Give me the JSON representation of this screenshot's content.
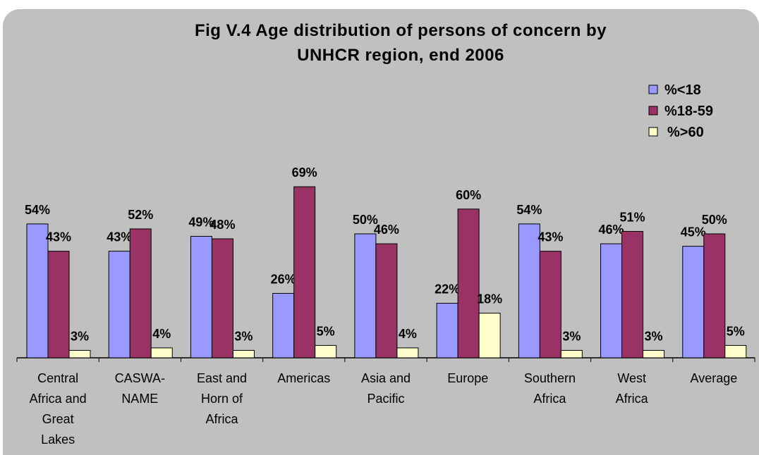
{
  "chart_data": {
    "type": "bar",
    "title": "Fig V.4 Age distribution of persons of concern by UNHCR region, end 2006",
    "title_lines": [
      "Fig V.4 Age distribution of persons of concern by",
      "UNHCR region, end 2006"
    ],
    "categories": [
      [
        "Central",
        "Africa and",
        "Great",
        "Lakes"
      ],
      [
        "CASWA-",
        "NAME"
      ],
      [
        "East and",
        "Horn of",
        "Africa"
      ],
      [
        "Americas"
      ],
      [
        "Asia and",
        "Pacific"
      ],
      [
        "Europe"
      ],
      [
        "Southern",
        "Africa"
      ],
      [
        "West",
        "Africa"
      ],
      [
        "Average"
      ]
    ],
    "series": [
      {
        "name": "%<18",
        "color": "#9999ff",
        "values": [
          54,
          43,
          49,
          26,
          50,
          22,
          54,
          46,
          45
        ],
        "labels": [
          "54%",
          "43%",
          "49%",
          "26%",
          "50%",
          "22%",
          "54%",
          "46%",
          "45%"
        ]
      },
      {
        "name": "%18-59",
        "color": "#993366",
        "values": [
          43,
          52,
          48,
          69,
          46,
          60,
          43,
          51,
          50
        ],
        "labels": [
          "43%",
          "52%",
          "48%",
          "69%",
          "46%",
          "60%",
          "43%",
          "51%",
          "50%"
        ]
      },
      {
        "name": "%>60",
        "color": "#ffffcc",
        "values": [
          3,
          4,
          3,
          5,
          4,
          18,
          3,
          3,
          5
        ],
        "labels": [
          "3%",
          "4%",
          "3%",
          "5%",
          "4%",
          "18%",
          "3%",
          "3%",
          "5%"
        ]
      }
    ],
    "ylim": [
      0,
      100
    ],
    "grid": false,
    "legend": "top-right"
  }
}
